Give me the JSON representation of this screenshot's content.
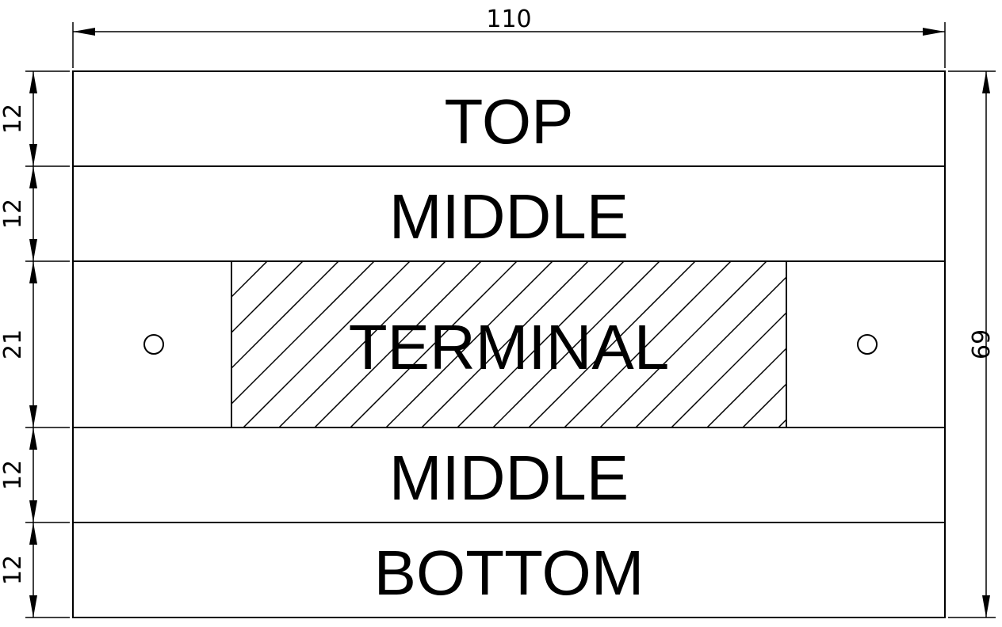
{
  "sections": [
    {
      "label": "TOP",
      "height_dim": "12"
    },
    {
      "label": "MIDDLE",
      "height_dim": "12"
    },
    {
      "label": "TERMINAL",
      "height_dim": "21"
    },
    {
      "label": "MIDDLE",
      "height_dim": "12"
    },
    {
      "label": "BOTTOM",
      "height_dim": "12"
    }
  ],
  "dimensions": {
    "overall_width": "110",
    "overall_height": "69"
  },
  "colors": {
    "line": "#000000",
    "background": "#ffffff"
  }
}
